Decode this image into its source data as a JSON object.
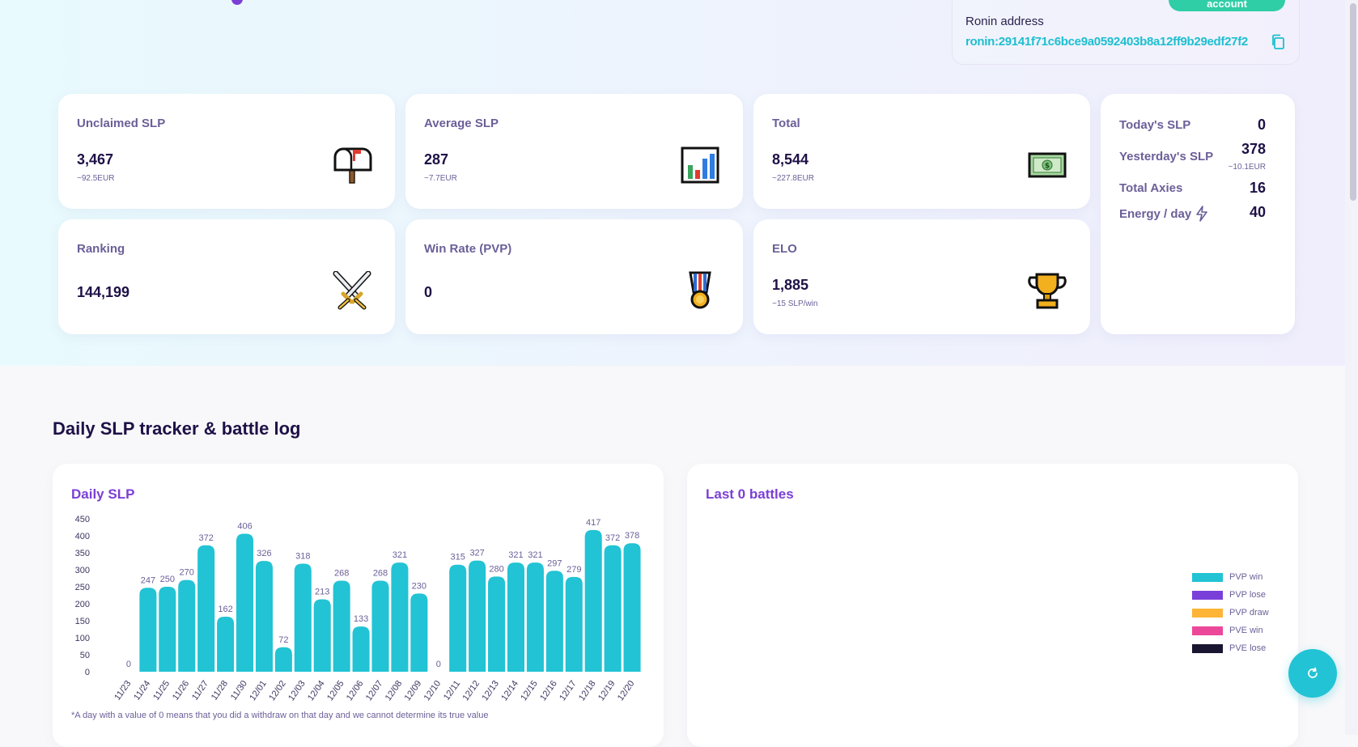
{
  "header": {
    "account_button": "account",
    "ronin_label": "Ronin address",
    "ronin_address": "ronin:29141f71c6bce9a0592403b8a12ff9b29edf27f2"
  },
  "stats": {
    "unclaimed": {
      "label": "Unclaimed SLP",
      "value": "3,467",
      "sub": "~92.5EUR",
      "icon": "mailbox-icon"
    },
    "average": {
      "label": "Average SLP",
      "value": "287",
      "sub": "~7.7EUR",
      "icon": "bar-chart-icon"
    },
    "total": {
      "label": "Total",
      "value": "8,544",
      "sub": "~227.8EUR",
      "icon": "banknote-icon"
    },
    "ranking": {
      "label": "Ranking",
      "value": "144,199",
      "icon": "crossed-swords-icon"
    },
    "winrate": {
      "label": "Win Rate (PVP)",
      "value": "0",
      "icon": "medal-icon"
    },
    "elo": {
      "label": "ELO",
      "value": "1,885",
      "sub": "~15 SLP/win",
      "icon": "trophy-icon"
    }
  },
  "side": {
    "today_label": "Today's SLP",
    "today_value": "0",
    "yesterday_label": "Yesterday's SLP",
    "yesterday_value": "378",
    "yesterday_sub": "~10.1EUR",
    "axies_label": "Total Axies",
    "axies_value": "16",
    "energy_label": "Energy / day",
    "energy_value": "40"
  },
  "section_title": "Daily SLP tracker & battle log",
  "daily_panel": {
    "title": "Daily SLP",
    "footnote": "*A day with a value of 0 means that you did a withdraw on that day and we cannot determine its true value"
  },
  "battles_panel": {
    "title": "Last 0 battles",
    "legend": [
      {
        "label": "PVP win",
        "color": "#22c3d4"
      },
      {
        "label": "PVP lose",
        "color": "#7a3fd9"
      },
      {
        "label": "PVP draw",
        "color": "#fdb437"
      },
      {
        "label": "PVE win",
        "color": "#ec4899"
      },
      {
        "label": "PVE lose",
        "color": "#1a1530"
      }
    ]
  },
  "chart_data": {
    "type": "bar",
    "categories": [
      "11/23",
      "11/24",
      "11/25",
      "11/26",
      "11/27",
      "11/28",
      "11/30",
      "12/01",
      "12/02",
      "12/03",
      "12/04",
      "12/05",
      "12/06",
      "12/07",
      "12/08",
      "12/09",
      "12/10",
      "12/11",
      "12/12",
      "12/13",
      "12/14",
      "12/15",
      "12/16",
      "12/17",
      "12/18",
      "12/19",
      "12/20"
    ],
    "values": [
      0,
      247,
      250,
      270,
      372,
      162,
      406,
      326,
      72,
      318,
      213,
      268,
      133,
      268,
      321,
      230,
      0,
      315,
      327,
      280,
      321,
      321,
      297,
      279,
      417,
      372,
      378
    ],
    "title": "Daily SLP",
    "ylim": [
      0,
      450
    ],
    "yticks": [
      0,
      50,
      100,
      150,
      200,
      250,
      300,
      350,
      400,
      450
    ],
    "bar_color": "#22c3d4"
  }
}
